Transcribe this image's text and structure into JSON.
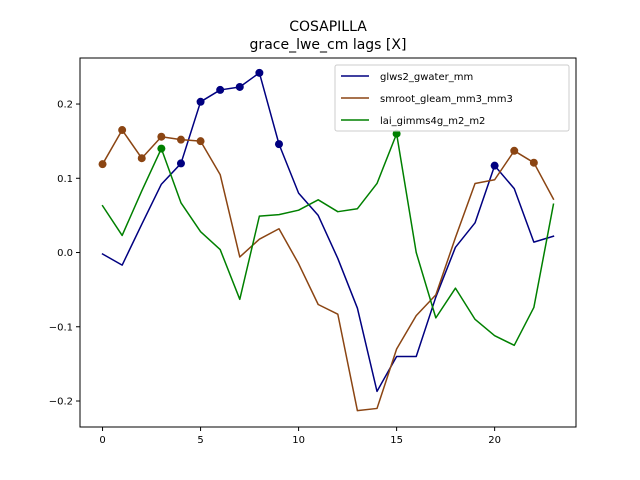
{
  "chart_data": {
    "type": "line",
    "title": "COSAPILLA",
    "subtitle": "grace_lwe_cm lags [X]",
    "xlabel": "",
    "ylabel": "",
    "xlim": [
      -1.15,
      24.15
    ],
    "ylim": [
      -0.235,
      0.262
    ],
    "x_ticks": [
      0,
      5,
      10,
      15,
      20
    ],
    "y_ticks": [
      -0.2,
      -0.1,
      0.0,
      0.1,
      0.2
    ],
    "y_tick_labels": [
      "−0.2",
      "−0.1",
      "0.0",
      "0.1",
      "0.2"
    ],
    "grid": false,
    "legend_position": "top-right",
    "x": [
      0,
      1,
      2,
      3,
      4,
      5,
      6,
      7,
      8,
      9,
      10,
      11,
      12,
      13,
      14,
      15,
      16,
      17,
      18,
      19,
      20,
      21,
      22,
      23
    ],
    "series": [
      {
        "name": "glws2_gwater_mm",
        "color": "#000080",
        "values": [
          -0.002,
          -0.017,
          0.038,
          0.092,
          0.12,
          0.203,
          0.219,
          0.223,
          0.242,
          0.146,
          0.08,
          0.05,
          -0.008,
          -0.075,
          -0.187,
          -0.14,
          -0.14,
          -0.06,
          0.007,
          0.04,
          0.117,
          0.086,
          0.014,
          0.022
        ],
        "markers": [
          4,
          5,
          6,
          7,
          8,
          9,
          20
        ]
      },
      {
        "name": "smroot_gleam_mm3_mm3",
        "color": "#8B4513",
        "values": [
          0.119,
          0.165,
          0.127,
          0.156,
          0.152,
          0.15,
          0.105,
          -0.006,
          0.018,
          0.032,
          -0.015,
          -0.07,
          -0.083,
          -0.213,
          -0.21,
          -0.13,
          -0.085,
          -0.057,
          0.02,
          0.093,
          0.098,
          0.137,
          0.121,
          0.072
        ],
        "markers": [
          0,
          1,
          2,
          3,
          4,
          5,
          21,
          22
        ]
      },
      {
        "name": "lai_gimms4g_m2_m2",
        "color": "#008000",
        "values": [
          0.063,
          0.023,
          0.083,
          0.14,
          0.067,
          0.028,
          0.004,
          -0.063,
          0.049,
          0.051,
          0.057,
          0.071,
          0.055,
          0.059,
          0.093,
          0.16,
          0.0,
          -0.088,
          -0.048,
          -0.09,
          -0.112,
          -0.125,
          -0.074,
          0.065
        ],
        "markers": [
          3,
          15
        ]
      }
    ]
  }
}
